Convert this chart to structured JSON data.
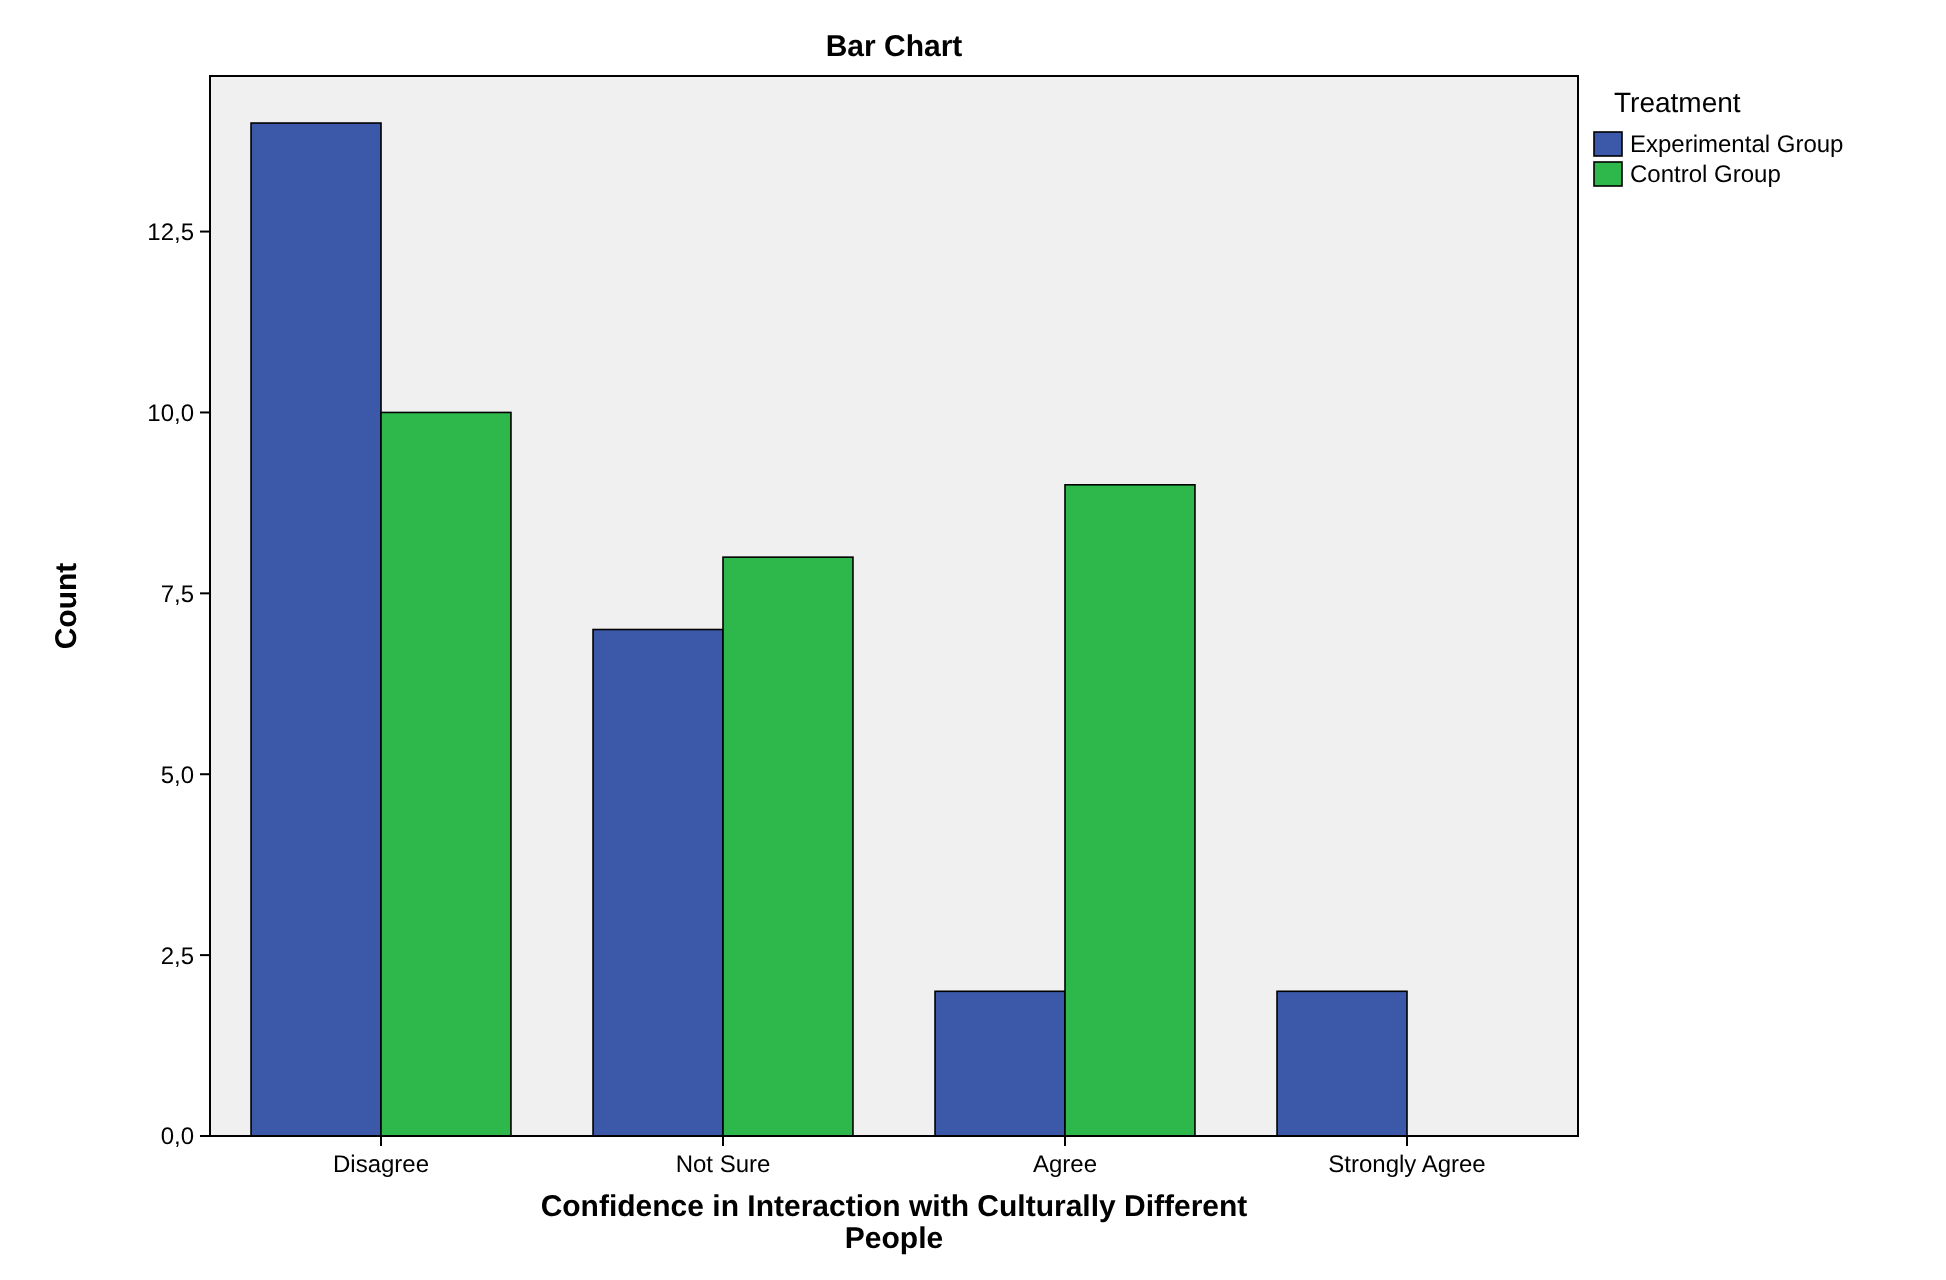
{
  "chart_data": {
    "type": "bar",
    "title": "Bar Chart",
    "xlabel": "Confidence in Interaction with Culturally Different People",
    "ylabel": "Count",
    "legend_title": "Treatment",
    "legend": "right",
    "categories": [
      "Disagree",
      "Not Sure",
      "Agree",
      "Strongly Agree"
    ],
    "series": [
      {
        "name": "Experimental Group",
        "color": "#3c58a8",
        "values": [
          14,
          7,
          2,
          2
        ]
      },
      {
        "name": "Control Group",
        "color": "#2eb84b",
        "values": [
          10,
          8,
          9,
          0
        ]
      }
    ],
    "ylim": [
      0,
      14.65
    ],
    "yticks": [
      {
        "value": 0,
        "label": "0,0"
      },
      {
        "value": 2.5,
        "label": "2,5"
      },
      {
        "value": 5,
        "label": "5,0"
      },
      {
        "value": 7.5,
        "label": "7,5"
      },
      {
        "value": 10,
        "label": "10,0"
      },
      {
        "value": 12.5,
        "label": "12,5"
      }
    ]
  }
}
